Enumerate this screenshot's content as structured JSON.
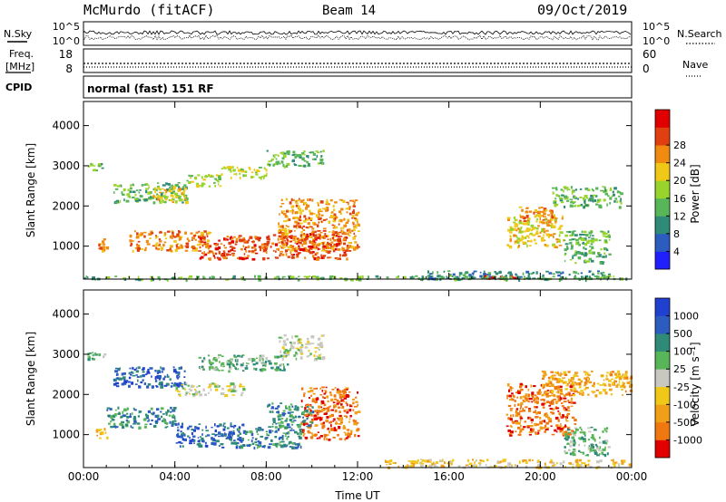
{
  "header": {
    "station": "McMurdo (fitACF)",
    "beam": "Beam 14",
    "date": "09/Oct/2019"
  },
  "top_panels": {
    "nsky_label": "N.Sky",
    "nsearch_label": "N.Search",
    "noise_ticks_left": [
      "10^5",
      "10^0"
    ],
    "noise_ticks_right": [
      "10^5",
      "10^0"
    ],
    "freq_label_1": "Freq.",
    "freq_label_2": "[MHz]",
    "freq_ticks": [
      "18",
      "8"
    ],
    "nave_label": "Nave",
    "nave_ticks": [
      "60",
      "0"
    ],
    "cpid_label": "CPID",
    "cpid_text": "normal (fast) 151 RF"
  },
  "chart_data": [
    {
      "type": "heatmap",
      "panel": "power",
      "ylabel": "Slant Range [km]",
      "xlabel": "",
      "xticks": [
        "00:00",
        "04:00",
        "08:00",
        "12:00",
        "16:00",
        "20:00",
        "00:00"
      ],
      "yticks": [
        "1000",
        "2000",
        "3000",
        "4000"
      ],
      "xlim_hours": [
        0,
        24
      ],
      "ylim_km": [
        180,
        4600
      ],
      "colorbar": {
        "label": "Power [dB]",
        "ticks": [
          "4",
          "8",
          "12",
          "16",
          "20",
          "24",
          "28"
        ],
        "colors": [
          "#2020ff",
          "#2c5cbf",
          "#2f8a78",
          "#58b558",
          "#99d42c",
          "#f0c818",
          "#f08a10",
          "#e04010",
          "#e00000"
        ]
      },
      "echo_regions": [
        {
          "t0": 0.1,
          "t1": 0.9,
          "r0": 2900,
          "r1": 3100,
          "level": 3
        },
        {
          "t0": 0.5,
          "t1": 1.1,
          "r0": 900,
          "r1": 1200,
          "level": 6
        },
        {
          "t0": 1.3,
          "t1": 4.5,
          "r0": 2100,
          "r1": 2600,
          "level": 3
        },
        {
          "t0": 3.0,
          "t1": 4.5,
          "r0": 2100,
          "r1": 2500,
          "level": 5
        },
        {
          "t0": 4.5,
          "t1": 6.0,
          "r0": 2500,
          "r1": 2800,
          "level": 4
        },
        {
          "t0": 6.0,
          "t1": 8.0,
          "r0": 2700,
          "r1": 3000,
          "level": 4
        },
        {
          "t0": 8.0,
          "t1": 10.5,
          "r0": 3000,
          "r1": 3400,
          "level": 3
        },
        {
          "t0": 2.0,
          "t1": 5.5,
          "r0": 900,
          "r1": 1400,
          "level": 6
        },
        {
          "t0": 5.0,
          "t1": 9.5,
          "r0": 700,
          "r1": 1300,
          "level": 7
        },
        {
          "t0": 8.5,
          "t1": 12.0,
          "r0": 900,
          "r1": 2200,
          "level": 6
        },
        {
          "t0": 9.5,
          "t1": 11.5,
          "r0": 700,
          "r1": 1400,
          "level": 7
        },
        {
          "t0": 15.0,
          "t1": 23.0,
          "r0": 200,
          "r1": 400,
          "level": 2
        },
        {
          "t0": 17.5,
          "t1": 19.0,
          "r0": 200,
          "r1": 300,
          "level": 8
        },
        {
          "t0": 18.5,
          "t1": 21.0,
          "r0": 1000,
          "r1": 1800,
          "level": 5
        },
        {
          "t0": 19.0,
          "t1": 20.5,
          "r0": 1600,
          "r1": 2000,
          "level": 6
        },
        {
          "t0": 20.5,
          "t1": 23.5,
          "r0": 2000,
          "r1": 2500,
          "level": 3
        },
        {
          "t0": 21.0,
          "t1": 23.0,
          "r0": 600,
          "r1": 1400,
          "level": 3
        },
        {
          "t0": 0.0,
          "t1": 24.0,
          "r0": 180,
          "r1": 280,
          "level": 3
        }
      ]
    },
    {
      "type": "heatmap",
      "panel": "velocity",
      "ylabel": "Slant Range [km]",
      "xlabel": "Time UT",
      "xticks": [
        "00:00",
        "04:00",
        "08:00",
        "12:00",
        "16:00",
        "20:00",
        "00:00"
      ],
      "yticks": [
        "1000",
        "2000",
        "3000",
        "4000"
      ],
      "xlim_hours": [
        0,
        24
      ],
      "ylim_km": [
        180,
        4600
      ],
      "colorbar": {
        "label": "Velocity [m s⁻¹]",
        "ticks": [
          "1000",
          "500",
          "100",
          "25",
          "-25",
          "-100",
          "-500",
          "-1000"
        ],
        "colors": [
          "#2040d0",
          "#2c5cbf",
          "#2f8a78",
          "#58b558",
          "#c8c8c0",
          "#f0c818",
          "#f0a018",
          "#f07810",
          "#e00000"
        ]
      },
      "echo_regions": [
        {
          "t0": 0.1,
          "t1": 0.9,
          "r0": 2900,
          "r1": 3100,
          "level": 3
        },
        {
          "t0": 0.5,
          "t1": 1.0,
          "r0": 900,
          "r1": 1200,
          "level": 6
        },
        {
          "t0": 1.3,
          "t1": 4.5,
          "r0": 2200,
          "r1": 2700,
          "level": 1
        },
        {
          "t0": 4.0,
          "t1": 7.0,
          "r0": 2000,
          "r1": 2300,
          "level": 4
        },
        {
          "t0": 5.0,
          "t1": 9.0,
          "r0": 2600,
          "r1": 3000,
          "level": 3
        },
        {
          "t0": 8.5,
          "t1": 10.5,
          "r0": 2900,
          "r1": 3500,
          "level": 4
        },
        {
          "t0": 1.0,
          "t1": 4.0,
          "r0": 1200,
          "r1": 1700,
          "level": 2
        },
        {
          "t0": 4.0,
          "t1": 7.0,
          "r0": 700,
          "r1": 1300,
          "level": 1
        },
        {
          "t0": 6.5,
          "t1": 9.5,
          "r0": 700,
          "r1": 1200,
          "level": 2
        },
        {
          "t0": 9.5,
          "t1": 12.0,
          "r0": 900,
          "r1": 2200,
          "level": 7
        },
        {
          "t0": 8.0,
          "t1": 10.0,
          "r0": 1200,
          "r1": 1800,
          "level": 2
        },
        {
          "t0": 13.0,
          "t1": 24.0,
          "r0": 200,
          "r1": 400,
          "level": 5
        },
        {
          "t0": 18.5,
          "t1": 21.5,
          "r0": 1000,
          "r1": 2300,
          "level": 7
        },
        {
          "t0": 20.0,
          "t1": 24.0,
          "r0": 2000,
          "r1": 2600,
          "level": 6
        },
        {
          "t0": 21.0,
          "t1": 23.0,
          "r0": 500,
          "r1": 1200,
          "level": 3
        }
      ]
    }
  ]
}
